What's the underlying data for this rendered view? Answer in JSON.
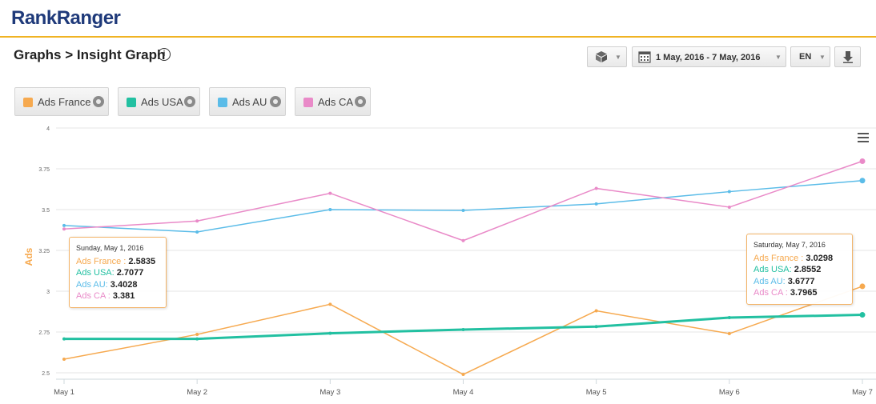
{
  "brand": {
    "logo_rank": "Rank",
    "logo_ranger": "Ranger"
  },
  "header": {
    "title": "Graphs > Insight Graph",
    "info_icon": "i"
  },
  "controls": {
    "date_range": "1 May, 2016 - 7 May, 2016",
    "language": "EN"
  },
  "legend": [
    {
      "label": "Ads France",
      "color": "#f6a94f"
    },
    {
      "label": "Ads USA",
      "color": "#22c0a1"
    },
    {
      "label": "Ads AU",
      "color": "#5bbce8"
    },
    {
      "label": "Ads CA",
      "color": "#e98ac8"
    }
  ],
  "tooltips": [
    {
      "date": "Sunday, May 1, 2016",
      "rows": [
        {
          "label": "Ads France",
          "sep": " : ",
          "value": "2.5835",
          "color": "#f6a94f"
        },
        {
          "label": "Ads USA",
          "sep": ": ",
          "value": "2.7077",
          "color": "#22c0a1"
        },
        {
          "label": "Ads AU",
          "sep": ": ",
          "value": "3.4028",
          "color": "#5bbce8"
        },
        {
          "label": "Ads CA",
          "sep": " : ",
          "value": "3.381",
          "color": "#e98ac8"
        }
      ]
    },
    {
      "date": "Saturday, May 7, 2016",
      "rows": [
        {
          "label": "Ads France",
          "sep": " : ",
          "value": "3.0298",
          "color": "#f6a94f"
        },
        {
          "label": "Ads USA",
          "sep": ": ",
          "value": "2.8552",
          "color": "#22c0a1"
        },
        {
          "label": "Ads AU",
          "sep": ": ",
          "value": "3.6777",
          "color": "#5bbce8"
        },
        {
          "label": "Ads CA",
          "sep": " : ",
          "value": "3.7965",
          "color": "#e98ac8"
        }
      ]
    }
  ],
  "chart_data": {
    "type": "line",
    "categories": [
      "May 1",
      "May 2",
      "May 3",
      "May 4",
      "May 5",
      "May 6",
      "May 7"
    ],
    "ylabel": "Ads",
    "ylim": [
      2.5,
      4
    ],
    "yticks": [
      "2.5",
      "2.75",
      "3",
      "3.25",
      "3.5",
      "3.75",
      "4"
    ],
    "grid": true,
    "legend_position": "top-left",
    "series": [
      {
        "name": "Ads France",
        "color": "#f6a94f",
        "values": [
          2.5835,
          2.735,
          2.92,
          2.49,
          2.88,
          2.74,
          3.0298
        ]
      },
      {
        "name": "Ads USA",
        "color": "#22c0a1",
        "values": [
          2.7077,
          2.708,
          2.742,
          2.765,
          2.783,
          2.838,
          2.8552
        ]
      },
      {
        "name": "Ads AU",
        "color": "#5bbce8",
        "values": [
          3.4028,
          3.363,
          3.5,
          3.495,
          3.535,
          3.61,
          3.6777
        ]
      },
      {
        "name": "Ads CA",
        "color": "#e98ac8",
        "values": [
          3.381,
          3.43,
          3.6,
          3.31,
          3.63,
          3.515,
          3.7965
        ]
      }
    ]
  }
}
